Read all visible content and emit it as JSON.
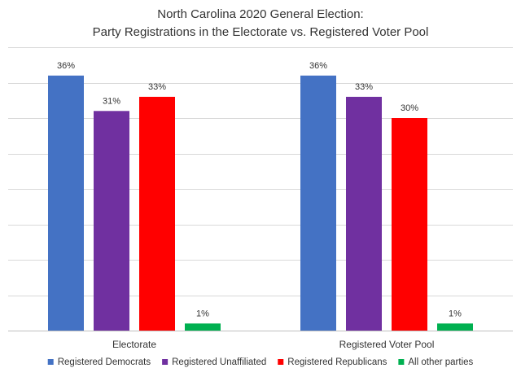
{
  "chart_data": {
    "type": "bar",
    "title": "North Carolina 2020 General Election:",
    "subtitle": "Party Registrations in the Electorate vs. Registered Voter Pool",
    "categories": [
      "Electorate",
      "Registered Voter Pool"
    ],
    "series": [
      {
        "name": "Registered Democrats",
        "color": "#4472C4",
        "values": [
          36,
          36
        ],
        "labels": [
          "36%",
          "36%"
        ]
      },
      {
        "name": "Registered Unaffiliated",
        "color": "#7030A0",
        "values": [
          31,
          33
        ],
        "labels": [
          "31%",
          "33%"
        ]
      },
      {
        "name": "Registered Republicans",
        "color": "#FF0000",
        "values": [
          33,
          30
        ],
        "labels": [
          "33%",
          "30%"
        ]
      },
      {
        "name": "All other parties",
        "color": "#00B050",
        "values": [
          1,
          1
        ],
        "labels": [
          "1%",
          "1%"
        ]
      }
    ],
    "ylim": [
      0,
      40
    ],
    "ygrid_step": 5,
    "grid": true,
    "legend_position": "bottom",
    "xlabel": "",
    "ylabel": ""
  }
}
